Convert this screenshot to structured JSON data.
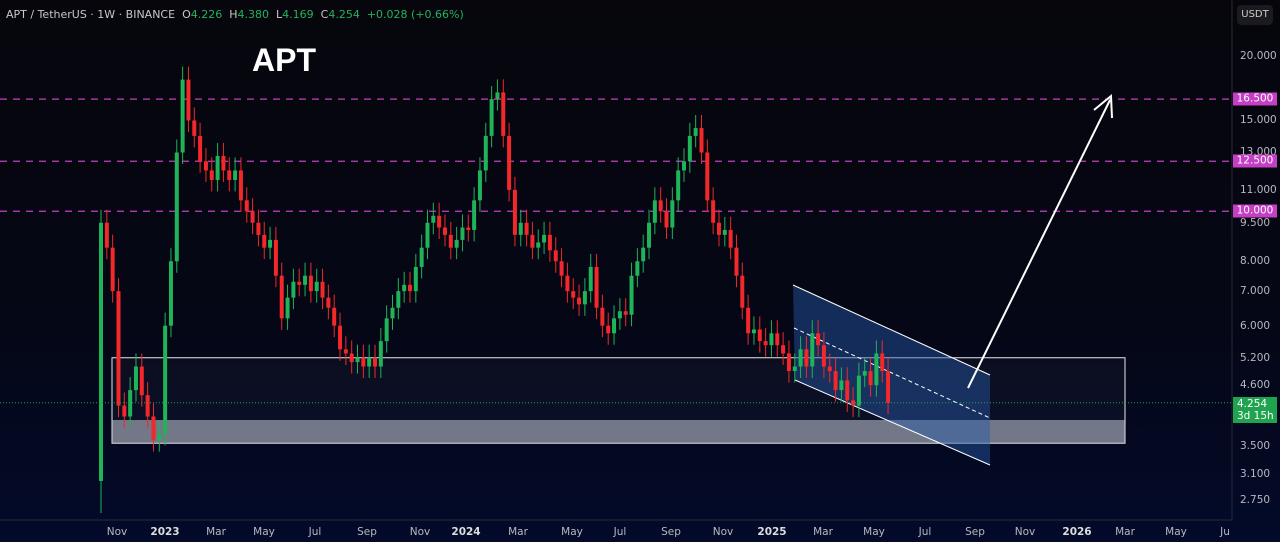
{
  "header": {
    "symbol": "APT / TetherUS · 1W · BINANCE",
    "o_label": "O",
    "o": "4.226",
    "h_label": "H",
    "h": "4.380",
    "l_label": "L",
    "l": "4.169",
    "c_label": "C",
    "c": "4.254",
    "change": "+0.028 (+0.66%)"
  },
  "annotation_title": "APT",
  "currency": "USDT",
  "colors": {
    "up": "#1fb35a",
    "down": "#f2282a",
    "level": "#c43fc4",
    "channel": "#1c4a8a",
    "arrow": "#ffffff"
  },
  "chart_data": {
    "type": "candlestick",
    "scale": "log",
    "ylim": [
      2.6,
      21.5
    ],
    "interval": "1W",
    "start": "2022-10-17",
    "first_open": 3.0,
    "closes": [
      9.5,
      8.5,
      7.0,
      4.2,
      4.0,
      4.5,
      5.0,
      4.4,
      4.0,
      3.6,
      3.7,
      6.0,
      8.0,
      13.0,
      18.0,
      15.0,
      14.0,
      12.5,
      12.0,
      11.5,
      12.8,
      12.0,
      11.5,
      12.0,
      10.5,
      10.0,
      9.5,
      9.0,
      8.5,
      8.8,
      7.5,
      6.2,
      6.8,
      7.3,
      7.2,
      7.5,
      7.0,
      7.3,
      6.8,
      6.5,
      6.0,
      5.4,
      5.3,
      5.1,
      5.2,
      5.0,
      5.2,
      5.0,
      5.6,
      6.2,
      6.5,
      7.0,
      7.2,
      7.0,
      7.8,
      8.5,
      9.5,
      9.8,
      9.3,
      9.0,
      8.5,
      8.8,
      9.3,
      9.2,
      10.5,
      12.0,
      14.0,
      16.5,
      17.0,
      14.0,
      11.0,
      9.0,
      9.5,
      9.0,
      8.5,
      8.7,
      9.0,
      8.4,
      8.0,
      7.5,
      7.0,
      6.8,
      6.6,
      7.0,
      7.8,
      6.5,
      6.0,
      5.8,
      6.2,
      6.4,
      6.3,
      7.5,
      8.0,
      8.5,
      9.5,
      10.5,
      10.0,
      9.3,
      10.5,
      12.0,
      12.5,
      14.0,
      14.5,
      13.0,
      10.5,
      9.5,
      9.0,
      9.2,
      8.5,
      7.5,
      6.5,
      5.8,
      5.9,
      5.6,
      5.5,
      5.8,
      5.5,
      5.3,
      4.9,
      5.0,
      5.4,
      5.0,
      5.8,
      5.5,
      5.0,
      4.9,
      4.5,
      4.7,
      4.3,
      4.2,
      4.8,
      4.9,
      4.6,
      5.3,
      4.9,
      4.254
    ],
    "y_ticks": [
      "20.000",
      "15.000",
      "13.000",
      "11.000",
      "9.500",
      "8.000",
      "7.000",
      "6.000",
      "5.200",
      "4.600",
      "3.500",
      "3.100",
      "2.750"
    ],
    "y_tick_values": [
      20,
      15,
      13,
      11,
      9.5,
      8,
      7,
      6,
      5.2,
      4.6,
      3.5,
      3.1,
      2.75
    ],
    "x_ticks": [
      "Nov",
      "2023",
      "Mar",
      "May",
      "Jul",
      "Sep",
      "Nov",
      "2024",
      "Mar",
      "May",
      "Jul",
      "Sep",
      "Nov",
      "2025",
      "Mar",
      "May",
      "Jul",
      "Sep",
      "Nov",
      "2026",
      "Mar",
      "May",
      "Ju"
    ],
    "levels": [
      {
        "value": 16.5,
        "label": "16.500"
      },
      {
        "value": 12.5,
        "label": "12.500"
      },
      {
        "value": 10.0,
        "label": "10.000"
      }
    ],
    "current_price": {
      "label": "4.254",
      "countdown": "3d 15h"
    },
    "support_zone": [
      3.55,
      5.2
    ],
    "grid": false
  }
}
